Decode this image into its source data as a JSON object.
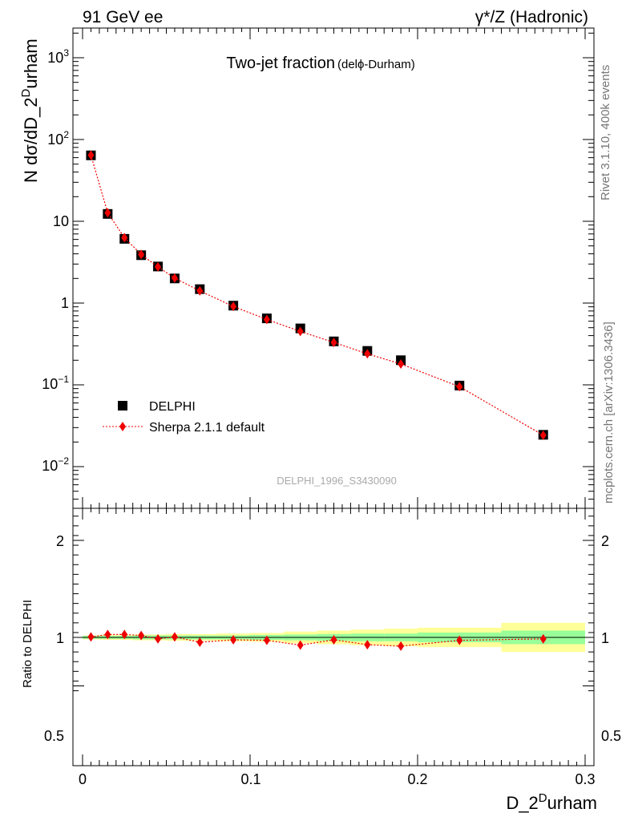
{
  "header": {
    "left": "91 GeV ee",
    "right": "γ*/Z (Hadronic)"
  },
  "side": {
    "rivet": "Rivet 3.1.10,  400k events",
    "mcplots": "mcplots.cern.ch [arXiv:1306.3436]"
  },
  "main": {
    "title": "Two-jet fraction",
    "title_sub": "(delϕ-Durham)",
    "ylabel": "N dσ/dD_2",
    "ylabel_sup": "D",
    "ylabel_tail": "urham",
    "analysis": "DELPHI_1996_S3430090",
    "y_ticks": [
      {
        "base": "10",
        "exp": "3"
      },
      {
        "base": "10",
        "exp": "2"
      },
      {
        "base": "10",
        "exp": ""
      },
      {
        "base": "1",
        "exp": ""
      },
      {
        "base": "10",
        "exp": "−1"
      },
      {
        "base": "10",
        "exp": "−2"
      }
    ]
  },
  "ratio": {
    "ylabel": "Ratio to DELPHI",
    "y_ticks": [
      "2",
      "1",
      "0.5"
    ]
  },
  "xaxis": {
    "label": "D_2",
    "label_sup": "D",
    "label_tail": "urham",
    "ticks": [
      "0",
      "0.1",
      "0.2",
      "0.3"
    ]
  },
  "legend": {
    "data": "DELPHI",
    "mc": "Sherpa 2.1.1 default"
  },
  "colors": {
    "data": "#000000",
    "mc": "#ee0000",
    "band_inner": "#99ff99",
    "band_outer": "#ffff99"
  },
  "chart_data": {
    "type": "scatter",
    "xlabel": "D_2^Durham",
    "ylabel": "N dσ/dD_2^Durham",
    "xlim": [
      0,
      0.3
    ],
    "ylim": [
      0.003,
      2000
    ],
    "yscale": "log",
    "ratio_ylim": [
      0.4,
      2.4
    ],
    "bins": [
      {
        "x": 0.005,
        "w": 0.005
      },
      {
        "x": 0.015,
        "w": 0.005
      },
      {
        "x": 0.025,
        "w": 0.005
      },
      {
        "x": 0.035,
        "w": 0.005
      },
      {
        "x": 0.045,
        "w": 0.005
      },
      {
        "x": 0.055,
        "w": 0.005
      },
      {
        "x": 0.07,
        "w": 0.01
      },
      {
        "x": 0.09,
        "w": 0.01
      },
      {
        "x": 0.11,
        "w": 0.01
      },
      {
        "x": 0.13,
        "w": 0.01
      },
      {
        "x": 0.15,
        "w": 0.01
      },
      {
        "x": 0.17,
        "w": 0.01
      },
      {
        "x": 0.19,
        "w": 0.01
      },
      {
        "x": 0.225,
        "w": 0.025
      },
      {
        "x": 0.275,
        "w": 0.025
      }
    ],
    "series": [
      {
        "name": "DELPHI",
        "values": [
          64,
          12.3,
          6.1,
          3.85,
          2.8,
          2.0,
          1.48,
          0.93,
          0.65,
          0.49,
          0.34,
          0.26,
          0.2,
          0.098,
          0.0245
        ]
      },
      {
        "name": "Sherpa 2.1.1 default",
        "values": [
          64.3,
          12.7,
          6.3,
          3.93,
          2.77,
          2.02,
          1.41,
          0.91,
          0.63,
          0.45,
          0.33,
          0.24,
          0.18,
          0.095,
          0.0242
        ]
      }
    ],
    "ratio": [
      1.005,
      1.03,
      1.03,
      1.02,
      0.985,
      1.005,
      0.95,
      0.975,
      0.97,
      0.92,
      0.975,
      0.925,
      0.91,
      0.97,
      0.985
    ],
    "mc_err_ratio": [
      0,
      0,
      0,
      0,
      0,
      0,
      0,
      0,
      0,
      0,
      0,
      0,
      0,
      0,
      0.04
    ],
    "band_inner": [
      0.015,
      0.015,
      0.015,
      0.02,
      0.02,
      0.02,
      0.02,
      0.02,
      0.025,
      0.03,
      0.035,
      0.04,
      0.04,
      0.05,
      0.07
    ],
    "band_outer": [
      0.02,
      0.025,
      0.025,
      0.03,
      0.03,
      0.035,
      0.035,
      0.04,
      0.045,
      0.06,
      0.07,
      0.08,
      0.09,
      0.1,
      0.15
    ]
  }
}
